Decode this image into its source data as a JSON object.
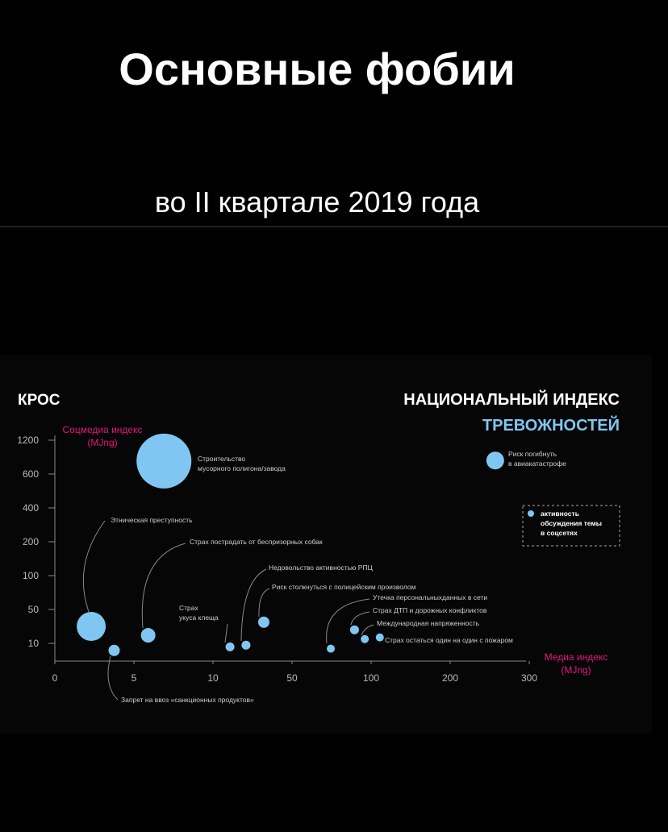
{
  "header": {
    "title": "Основные фобии",
    "subtitle": "во II квартале 2019 года"
  },
  "chart_data": {
    "type": "bubble",
    "brand": "КРОС",
    "title": "НАЦИОНАЛЬНЫЙ ИНДЕКС",
    "subtitle": "ТРЕВОЖНОСТЕЙ",
    "y_label": "Соцмедиа индекс",
    "y_unit": "(MJng)",
    "x_label": "Медиа индекс",
    "x_unit": "(MJng)",
    "legend": [
      "активность",
      "обсуждения темы",
      "в соцсетях"
    ],
    "xscale": "tick-spaced",
    "yscale": "tick-spaced",
    "xlim": [
      0,
      300
    ],
    "xticks": [
      0,
      5,
      10,
      50,
      100,
      200,
      300
    ],
    "ylim": [
      0,
      1200
    ],
    "yticks": [
      10,
      50,
      100,
      200,
      400,
      600,
      1200
    ],
    "color": "#7fc7f2",
    "labels": [
      "Строительство мусорного полигона/завода",
      "Этническая преступность",
      "Запрет на ввоз «санкционных продуктов»",
      "Страх пострадать от беспризорных собак",
      "Страх укуса клеща",
      "Недовольство активностью РПЦ",
      "Риск столкнуться с полицейским произволом",
      "Утечка персональныхданных в сети",
      "Страх ДТП и дорожных конфликтов",
      "Международная напряженность",
      "Страх остаться один на один с пожаром",
      "Риск погибнуть в авиакатастрофе"
    ],
    "x": [
      6.9,
      2.3,
      3.75,
      5.9,
      18.6,
      26.7,
      35.7,
      74.5,
      89.5,
      96,
      111,
      257
    ],
    "values": [
      830,
      30,
      6,
      19.5,
      8,
      9,
      35,
      7,
      26,
      15,
      17,
      840
    ],
    "sizes": [
      34,
      18,
      7,
      9,
      5.5,
      5.5,
      7,
      5,
      5.5,
      5,
      5,
      11
    ]
  }
}
